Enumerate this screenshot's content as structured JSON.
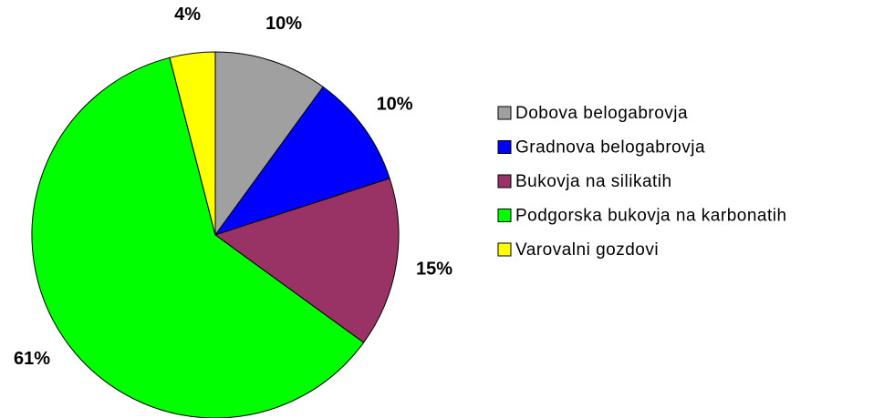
{
  "chart_data": {
    "type": "pie",
    "categories": [
      "Dobova belogabrovja",
      "Gradnova belogabrovja",
      "Bukovja na silikatih",
      "Podgorska bukovja na karbonatih",
      "Varovalni gozdovi"
    ],
    "values": [
      10,
      10,
      15,
      61,
      4
    ],
    "value_labels": [
      "10%",
      "10%",
      "15%",
      "61%",
      "4%"
    ],
    "colors": [
      "#a0a0a0",
      "#0000ff",
      "#993366",
      "#00ff00",
      "#ffff00"
    ],
    "legend": "right"
  }
}
